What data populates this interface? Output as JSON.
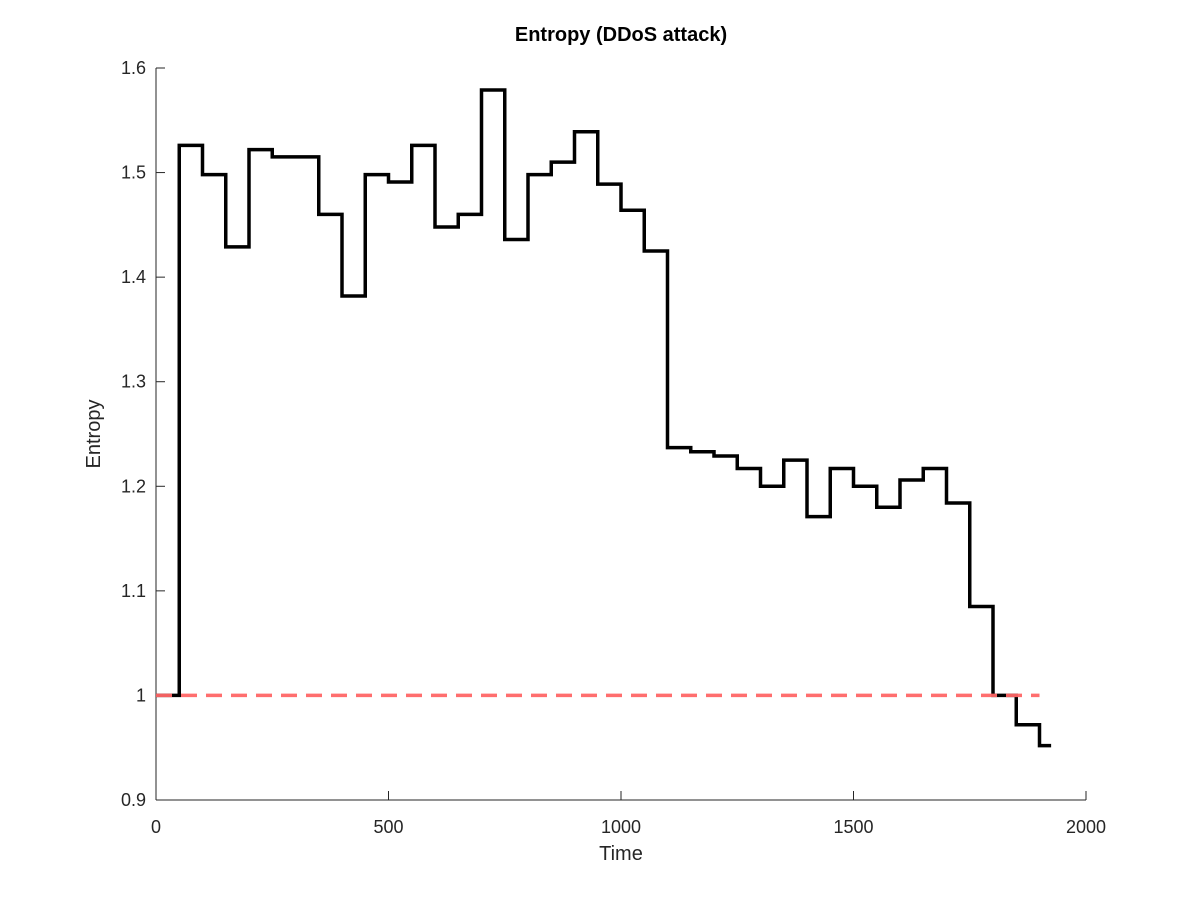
{
  "chart_data": {
    "type": "line",
    "title": "Entropy (DDoS attack)",
    "xlabel": "Time",
    "ylabel": "Entropy",
    "xlim": [
      0,
      2000
    ],
    "ylim": [
      0.9,
      1.6
    ],
    "xticks": [
      0,
      500,
      1000,
      1500,
      2000
    ],
    "xtick_labels": [
      "0",
      "500",
      "1000",
      "1500",
      "2000"
    ],
    "yticks": [
      0.9,
      1.0,
      1.1,
      1.2,
      1.3,
      1.4,
      1.5,
      1.6
    ],
    "ytick_labels": [
      "0.9",
      "1",
      "1.1",
      "1.2",
      "1.3",
      "1.4",
      "1.5",
      "1.6"
    ],
    "grid": false,
    "series": [
      {
        "style": "step",
        "color": "#000000",
        "x": [
          0,
          50,
          100,
          150,
          200,
          250,
          300,
          350,
          400,
          450,
          500,
          550,
          600,
          650,
          700,
          750,
          800,
          850,
          900,
          950,
          1000,
          1050,
          1100,
          1150,
          1200,
          1250,
          1300,
          1350,
          1400,
          1450,
          1500,
          1550,
          1600,
          1650,
          1700,
          1750,
          1800,
          1850,
          1900
        ],
        "values": [
          1.0,
          1.526,
          1.498,
          1.429,
          1.522,
          1.515,
          1.515,
          1.46,
          1.382,
          1.498,
          1.491,
          1.526,
          1.448,
          1.46,
          1.579,
          1.436,
          1.498,
          1.51,
          1.539,
          1.489,
          1.464,
          1.425,
          1.237,
          1.233,
          1.229,
          1.217,
          1.2,
          1.225,
          1.171,
          1.217,
          1.2,
          1.18,
          1.206,
          1.217,
          1.184,
          1.085,
          1.0,
          0.972,
          0.952
        ],
        "x_end": 1925
      },
      {
        "style": "dashed",
        "color": "#ff6666",
        "x": [
          0,
          1900
        ],
        "values": [
          1.0,
          1.0
        ]
      }
    ]
  }
}
